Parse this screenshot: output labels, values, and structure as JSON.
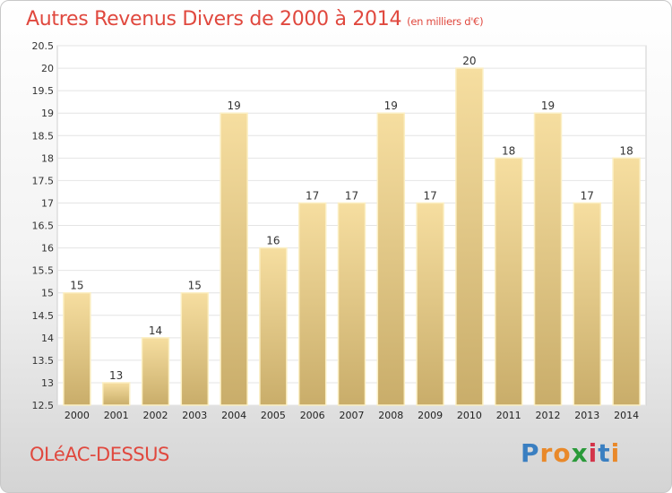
{
  "title": "Autres Revenus Divers de 2000 à 2014",
  "subtitle": "(en milliers d'€)",
  "commune": "OLéAC-DESSUS",
  "logo": {
    "text": "Proxiti",
    "letters": [
      "P",
      "r",
      "o",
      "x",
      "i",
      "t",
      "i"
    ],
    "colors": [
      "#3a7fc1",
      "#e9892a",
      "#e9892a",
      "#2a9a3a",
      "#d3344a",
      "#3a7fc1",
      "#e9892a"
    ]
  },
  "chart_data": {
    "type": "bar",
    "categories": [
      "2000",
      "2001",
      "2002",
      "2003",
      "2004",
      "2005",
      "2006",
      "2007",
      "2008",
      "2009",
      "2010",
      "2011",
      "2012",
      "2013",
      "2014"
    ],
    "values": [
      15,
      13,
      14,
      15,
      19,
      16,
      17,
      17,
      19,
      17,
      20,
      18,
      19,
      17,
      18
    ],
    "ylim": [
      12.5,
      20.5
    ],
    "yticks": [
      "12.5",
      "13",
      "13.5",
      "14",
      "14.5",
      "15",
      "15.5",
      "16",
      "16.5",
      "17",
      "17.5",
      "18",
      "18.5",
      "19",
      "19.5",
      "20",
      "20.5"
    ],
    "grid": true,
    "bar_color_top": "#f6dea0",
    "bar_color_bottom": "#c9ad6a"
  }
}
